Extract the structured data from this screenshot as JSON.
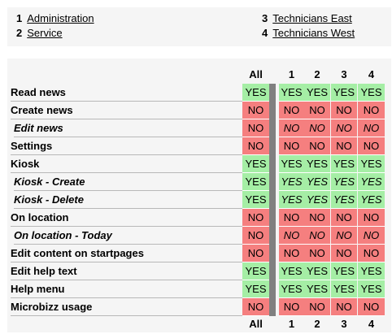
{
  "legend": [
    {
      "num": "1",
      "label": "Administration"
    },
    {
      "num": "2",
      "label": "Service"
    },
    {
      "num": "3",
      "label": "Technicians East"
    },
    {
      "num": "4",
      "label": "Technicians West"
    }
  ],
  "columns": [
    "All",
    "1",
    "2",
    "3",
    "4"
  ],
  "rows": [
    {
      "label": "Read news",
      "sub": false,
      "values": [
        "YES",
        "YES",
        "YES",
        "YES",
        "YES"
      ]
    },
    {
      "label": "Create news",
      "sub": false,
      "values": [
        "NO",
        "NO",
        "NO",
        "NO",
        "NO"
      ]
    },
    {
      "label": "Edit news",
      "sub": true,
      "values": [
        "NO",
        "NO",
        "NO",
        "NO",
        "NO"
      ]
    },
    {
      "label": "Settings",
      "sub": false,
      "values": [
        "NO",
        "NO",
        "NO",
        "NO",
        "NO"
      ]
    },
    {
      "label": "Kiosk",
      "sub": false,
      "values": [
        "YES",
        "YES",
        "YES",
        "YES",
        "YES"
      ]
    },
    {
      "label": "Kiosk - Create",
      "sub": true,
      "values": [
        "YES",
        "YES",
        "YES",
        "YES",
        "YES"
      ]
    },
    {
      "label": "Kiosk - Delete",
      "sub": true,
      "values": [
        "YES",
        "YES",
        "YES",
        "YES",
        "YES"
      ]
    },
    {
      "label": "On location",
      "sub": false,
      "values": [
        "NO",
        "NO",
        "NO",
        "NO",
        "NO"
      ]
    },
    {
      "label": "On location - Today",
      "sub": true,
      "values": [
        "NO",
        "NO",
        "NO",
        "NO",
        "NO"
      ]
    },
    {
      "label": "Edit content on startpages",
      "sub": false,
      "values": [
        "NO",
        "NO",
        "NO",
        "NO",
        "NO"
      ]
    },
    {
      "label": "Edit help text",
      "sub": false,
      "values": [
        "YES",
        "YES",
        "YES",
        "YES",
        "YES"
      ]
    },
    {
      "label": "Help menu",
      "sub": false,
      "values": [
        "YES",
        "YES",
        "YES",
        "YES",
        "YES"
      ]
    },
    {
      "label": "Microbizz usage",
      "sub": false,
      "values": [
        "NO",
        "NO",
        "NO",
        "NO",
        "NO"
      ]
    }
  ],
  "colors": {
    "yes": "#a5eea5",
    "no": "#f57f7f",
    "separator": "#808080",
    "panel": "#f5f5f5"
  }
}
